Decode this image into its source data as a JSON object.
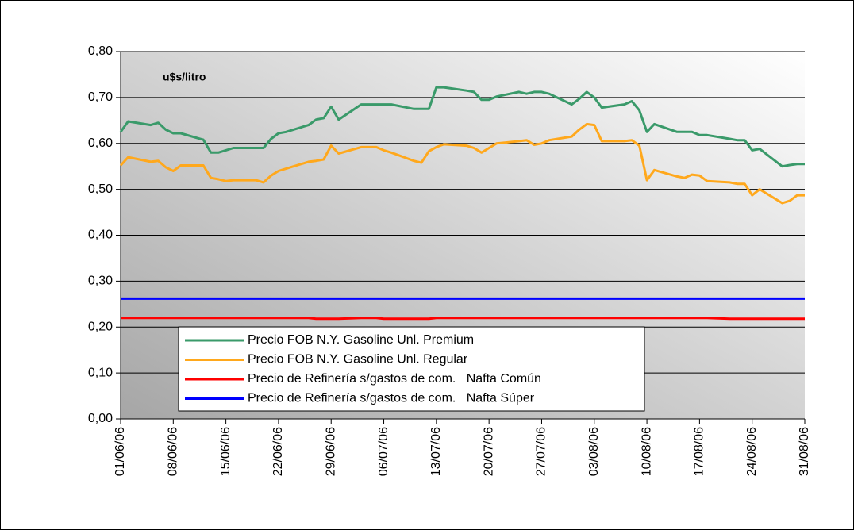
{
  "chart_data": {
    "type": "line",
    "annotation": "u$s/litro",
    "x": [
      "01/06/06",
      "02/06/06",
      "05/06/06",
      "06/06/06",
      "07/06/06",
      "08/06/06",
      "09/06/06",
      "12/06/06",
      "13/06/06",
      "14/06/06",
      "15/06/06",
      "16/06/06",
      "19/06/06",
      "20/06/06",
      "21/06/06",
      "22/06/06",
      "23/06/06",
      "26/06/06",
      "27/06/06",
      "28/06/06",
      "29/06/06",
      "30/06/06",
      "03/07/06",
      "04/07/06",
      "05/07/06",
      "06/07/06",
      "07/07/06",
      "10/07/06",
      "11/07/06",
      "12/07/06",
      "13/07/06",
      "14/07/06",
      "17/07/06",
      "18/07/06",
      "19/07/06",
      "20/07/06",
      "21/07/06",
      "24/07/06",
      "25/07/06",
      "26/07/06",
      "27/07/06",
      "28/07/06",
      "31/07/06",
      "01/08/06",
      "02/08/06",
      "03/08/06",
      "04/08/06",
      "07/08/06",
      "08/08/06",
      "09/08/06",
      "10/08/06",
      "11/08/06",
      "14/08/06",
      "15/08/06",
      "16/08/06",
      "17/08/06",
      "18/08/06",
      "21/08/06",
      "22/08/06",
      "23/08/06",
      "24/08/06",
      "25/08/06",
      "28/08/06",
      "29/08/06",
      "30/08/06",
      "31/08/06"
    ],
    "series": [
      {
        "name": "Precio FOB N.Y. Gasoline Unl. Premium",
        "color": "#3a9a6a",
        "values": [
          0.625,
          0.648,
          0.64,
          0.645,
          0.63,
          0.622,
          0.622,
          0.608,
          0.58,
          0.58,
          0.585,
          0.59,
          0.59,
          0.59,
          0.61,
          0.622,
          0.625,
          0.64,
          0.652,
          0.655,
          0.68,
          0.652,
          0.685,
          0.685,
          0.685,
          0.685,
          0.685,
          0.675,
          0.675,
          0.675,
          0.722,
          0.722,
          0.715,
          0.712,
          0.695,
          0.695,
          0.702,
          0.712,
          0.708,
          0.712,
          0.712,
          0.708,
          0.685,
          0.697,
          0.712,
          0.7,
          0.678,
          0.685,
          0.692,
          0.672,
          0.625,
          0.642,
          0.625,
          0.625,
          0.625,
          0.618,
          0.618,
          0.61,
          0.607,
          0.607,
          0.585,
          0.588,
          0.55,
          0.553,
          0.555,
          0.555
        ]
      },
      {
        "name": "Precio FOB N.Y. Gasoline Unl. Regular",
        "color": "#ffa81c",
        "values": [
          0.552,
          0.57,
          0.56,
          0.562,
          0.548,
          0.54,
          0.552,
          0.552,
          0.525,
          0.522,
          0.518,
          0.52,
          0.52,
          0.515,
          0.53,
          0.54,
          0.545,
          0.56,
          0.562,
          0.565,
          0.595,
          0.578,
          0.592,
          0.592,
          0.592,
          0.585,
          0.58,
          0.562,
          0.558,
          0.583,
          0.592,
          0.598,
          0.595,
          0.59,
          0.58,
          0.59,
          0.6,
          0.605,
          0.607,
          0.597,
          0.6,
          0.607,
          0.615,
          0.63,
          0.642,
          0.64,
          0.605,
          0.605,
          0.607,
          0.595,
          0.52,
          0.542,
          0.528,
          0.525,
          0.532,
          0.53,
          0.518,
          0.515,
          0.512,
          0.512,
          0.487,
          0.5,
          0.47,
          0.475,
          0.487,
          0.487
        ]
      },
      {
        "name": "Precio de Refinería s/gastos de com.   Nafta Común",
        "color": "#ff0000",
        "values": [
          0.22,
          0.22,
          0.22,
          0.22,
          0.22,
          0.22,
          0.22,
          0.22,
          0.22,
          0.22,
          0.22,
          0.22,
          0.22,
          0.22,
          0.22,
          0.22,
          0.22,
          0.22,
          0.218,
          0.218,
          0.218,
          0.218,
          0.22,
          0.22,
          0.22,
          0.218,
          0.218,
          0.218,
          0.218,
          0.218,
          0.22,
          0.22,
          0.22,
          0.22,
          0.22,
          0.22,
          0.22,
          0.22,
          0.22,
          0.22,
          0.22,
          0.22,
          0.22,
          0.22,
          0.22,
          0.22,
          0.22,
          0.22,
          0.22,
          0.22,
          0.22,
          0.22,
          0.22,
          0.22,
          0.22,
          0.22,
          0.22,
          0.218,
          0.218,
          0.218,
          0.218,
          0.218,
          0.218,
          0.218,
          0.218,
          0.218
        ]
      },
      {
        "name": "Precio de Refinería s/gastos de com.   Nafta Súper",
        "color": "#0000ff",
        "values": [
          0.262,
          0.262,
          0.262,
          0.262,
          0.262,
          0.262,
          0.262,
          0.262,
          0.262,
          0.262,
          0.262,
          0.262,
          0.262,
          0.262,
          0.262,
          0.262,
          0.262,
          0.262,
          0.262,
          0.262,
          0.262,
          0.262,
          0.262,
          0.262,
          0.262,
          0.262,
          0.262,
          0.262,
          0.262,
          0.262,
          0.262,
          0.262,
          0.262,
          0.262,
          0.262,
          0.262,
          0.262,
          0.262,
          0.262,
          0.262,
          0.262,
          0.262,
          0.262,
          0.262,
          0.262,
          0.262,
          0.262,
          0.262,
          0.262,
          0.262,
          0.262,
          0.262,
          0.262,
          0.262,
          0.262,
          0.262,
          0.262,
          0.262,
          0.262,
          0.262,
          0.262,
          0.262,
          0.262,
          0.262,
          0.262,
          0.262
        ]
      }
    ],
    "xlim": [
      "01/06/06",
      "31/08/06"
    ],
    "xticks": [
      "01/06/06",
      "08/06/06",
      "15/06/06",
      "22/06/06",
      "29/06/06",
      "06/07/06",
      "13/07/06",
      "20/07/06",
      "27/07/06",
      "03/08/06",
      "10/08/06",
      "17/08/06",
      "24/08/06",
      "31/08/06"
    ],
    "ylim": [
      0,
      0.8
    ],
    "yticks": [
      {
        "value": 0,
        "label": "0,00"
      },
      {
        "value": 0.1,
        "label": "0,10"
      },
      {
        "value": 0.2,
        "label": "0,20"
      },
      {
        "value": 0.3,
        "label": "0,30"
      },
      {
        "value": 0.4,
        "label": "0,40"
      },
      {
        "value": 0.5,
        "label": "0,50"
      },
      {
        "value": 0.6,
        "label": "0,60"
      },
      {
        "value": 0.7,
        "label": "0,70"
      },
      {
        "value": 0.8,
        "label": "0,80"
      }
    ],
    "grid": true
  }
}
